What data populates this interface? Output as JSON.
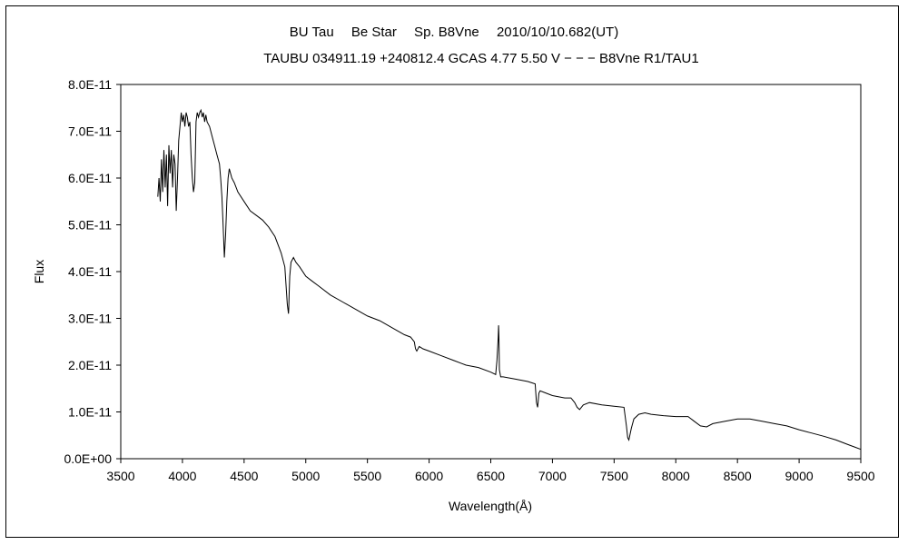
{
  "chart_data": {
    "type": "line",
    "title": "BU Tau　 Be Star　 Sp. B8Vne　 2010/10/10.682(UT)",
    "subtitle": "TAUBU 034911.19 +240812.4 GCAS 4.77 5.50 V − − − B8Vne R1/TAU1",
    "xlabel": "Wavelength(Å)",
    "ylabel": "Flux",
    "xlim": [
      3500,
      9500
    ],
    "ylim": [
      0,
      8e-11
    ],
    "x_ticks": [
      3500,
      4000,
      4500,
      5000,
      5500,
      6000,
      6500,
      7000,
      7500,
      8000,
      8500,
      9000,
      9500
    ],
    "y_ticks": [
      0,
      1e-11,
      2e-11,
      3e-11,
      4e-11,
      5e-11,
      6e-11,
      7e-11,
      8e-11
    ],
    "x_tick_labels": [
      "3500",
      "4000",
      "4500",
      "5000",
      "5500",
      "6000",
      "6500",
      "7000",
      "7500",
      "8000",
      "8500",
      "9000",
      "9500"
    ],
    "y_tick_labels": [
      "0.0E+00",
      "1.0E-11",
      "2.0E-11",
      "3.0E-11",
      "4.0E-11",
      "5.0E-11",
      "6.0E-11",
      "7.0E-11",
      "8.0E-11"
    ],
    "grid": false,
    "legend": "none",
    "line_color": "#000000",
    "series": [
      {
        "x": [
          3800,
          3810,
          3820,
          3830,
          3840,
          3850,
          3860,
          3870,
          3880,
          3890,
          3900,
          3910,
          3920,
          3930,
          3940,
          3950,
          3960,
          3970,
          3980,
          3990,
          4000,
          4010,
          4020,
          4030,
          4040,
          4050,
          4060,
          4070,
          4080,
          4090,
          4100,
          4110,
          4120,
          4130,
          4140,
          4150,
          4160,
          4170,
          4180,
          4190,
          4200,
          4220,
          4240,
          4260,
          4280,
          4300,
          4310,
          4320,
          4330,
          4340,
          4350,
          4360,
          4370,
          4380,
          4400,
          4420,
          4450,
          4500,
          4550,
          4600,
          4650,
          4700,
          4750,
          4800,
          4830,
          4850,
          4860,
          4862,
          4865,
          4870,
          4880,
          4900,
          4920,
          4950,
          5000,
          5050,
          5100,
          5200,
          5300,
          5400,
          5500,
          5600,
          5700,
          5800,
          5850,
          5880,
          5890,
          5900,
          5920,
          5950,
          6000,
          6100,
          6200,
          6300,
          6400,
          6500,
          6540,
          6550,
          6560,
          6563,
          6566,
          6570,
          6580,
          6600,
          6700,
          6800,
          6860,
          6870,
          6880,
          6890,
          6900,
          6950,
          7000,
          7100,
          7150,
          7180,
          7200,
          7220,
          7250,
          7300,
          7400,
          7500,
          7580,
          7600,
          7610,
          7620,
          7640,
          7660,
          7700,
          7750,
          7800,
          7900,
          8000,
          8100,
          8150,
          8200,
          8250,
          8300,
          8400,
          8500,
          8600,
          8700,
          8800,
          8900,
          9000,
          9100,
          9200,
          9300,
          9400,
          9450,
          9500
        ],
        "y": [
          5.6e-11,
          6e-11,
          5.5e-11,
          6.4e-11,
          5.7e-11,
          6.6e-11,
          5.8e-11,
          6.5e-11,
          5.4e-11,
          6.7e-11,
          6.1e-11,
          6.6e-11,
          5.8e-11,
          6.5e-11,
          6.3e-11,
          5.3e-11,
          6e-11,
          6.8e-11,
          7.1e-11,
          7.4e-11,
          7.2e-11,
          7.35e-11,
          7.1e-11,
          7.4e-11,
          7.3e-11,
          7.1e-11,
          7.2e-11,
          6.5e-11,
          6e-11,
          5.7e-11,
          5.9e-11,
          7.2e-11,
          7.4e-11,
          7.3e-11,
          7.4e-11,
          7.45e-11,
          7.3e-11,
          7.4e-11,
          7.2e-11,
          7.35e-11,
          7.2e-11,
          7.1e-11,
          6.9e-11,
          6.7e-11,
          6.5e-11,
          6.3e-11,
          6e-11,
          5.6e-11,
          5e-11,
          4.3e-11,
          4.8e-11,
          5.5e-11,
          6e-11,
          6.2e-11,
          6e-11,
          5.9e-11,
          5.7e-11,
          5.5e-11,
          5.3e-11,
          5.2e-11,
          5.1e-11,
          4.95e-11,
          4.75e-11,
          4.4e-11,
          4.1e-11,
          3.3e-11,
          3.1e-11,
          3.2e-11,
          3.5e-11,
          3.9e-11,
          4.2e-11,
          4.3e-11,
          4.2e-11,
          4.1e-11,
          3.9e-11,
          3.8e-11,
          3.7e-11,
          3.5e-11,
          3.35e-11,
          3.2e-11,
          3.05e-11,
          2.95e-11,
          2.8e-11,
          2.65e-11,
          2.6e-11,
          2.5e-11,
          2.35e-11,
          2.3e-11,
          2.4e-11,
          2.35e-11,
          2.3e-11,
          2.2e-11,
          2.1e-11,
          2e-11,
          1.95e-11,
          1.85e-11,
          1.8e-11,
          2.1e-11,
          2.6e-11,
          2.85e-11,
          2.6e-11,
          1.9e-11,
          1.75e-11,
          1.75e-11,
          1.7e-11,
          1.65e-11,
          1.6e-11,
          1.2e-11,
          1.1e-11,
          1.4e-11,
          1.45e-11,
          1.4e-11,
          1.35e-11,
          1.3e-11,
          1.3e-11,
          1.2e-11,
          1.1e-11,
          1.05e-11,
          1.15e-11,
          1.2e-11,
          1.15e-11,
          1.12e-11,
          1.1e-11,
          7e-12,
          4.5e-12,
          4e-12,
          6.5e-12,
          8.5e-12,
          9.5e-12,
          9.8e-12,
          9.5e-12,
          9.2e-12,
          9e-12,
          9e-12,
          8e-12,
          7e-12,
          6.8e-12,
          7.5e-12,
          8e-12,
          8.5e-12,
          8.5e-12,
          8e-12,
          7.5e-12,
          7e-12,
          6.2e-12,
          5.5e-12,
          4.8e-12,
          4e-12,
          3e-12,
          2.5e-12,
          2e-12
        ]
      }
    ]
  }
}
